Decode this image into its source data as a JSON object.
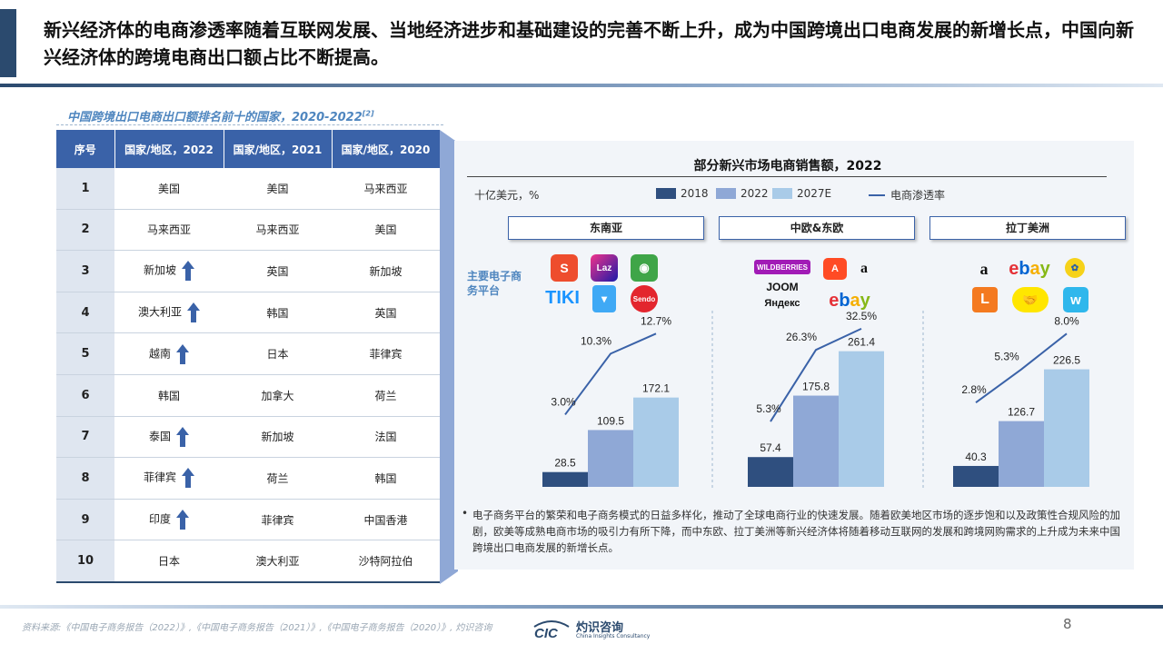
{
  "headline": "新兴经济体的电商渗透率随着互联网发展、当地经济进步和基础建设的完善不断上升，成为中国跨境出口电商发展的新增长点，中国向新兴经济体的跨境电商出口额占比不断提高。",
  "table": {
    "title": "中国跨境出口电商出口额排名前十的国家，2020-2022",
    "footnote": "[2]",
    "headers": [
      "序号",
      "国家/地区，2022",
      "国家/地区，2021",
      "国家/地区，2020"
    ],
    "rows": [
      {
        "rank": "1",
        "y2022": "美国",
        "y2021": "美国",
        "y2020": "马来西亚",
        "up": false
      },
      {
        "rank": "2",
        "y2022": "马来西亚",
        "y2021": "马来西亚",
        "y2020": "美国",
        "up": false
      },
      {
        "rank": "3",
        "y2022": "新加坡",
        "y2021": "英国",
        "y2020": "新加坡",
        "up": true
      },
      {
        "rank": "4",
        "y2022": "澳大利亚",
        "y2021": "韩国",
        "y2020": "英国",
        "up": true
      },
      {
        "rank": "5",
        "y2022": "越南",
        "y2021": "日本",
        "y2020": "菲律宾",
        "up": true
      },
      {
        "rank": "6",
        "y2022": "韩国",
        "y2021": "加拿大",
        "y2020": "荷兰",
        "up": false
      },
      {
        "rank": "7",
        "y2022": "泰国",
        "y2021": "新加坡",
        "y2020": "法国",
        "up": true
      },
      {
        "rank": "8",
        "y2022": "菲律宾",
        "y2021": "荷兰",
        "y2020": "韩国",
        "up": true
      },
      {
        "rank": "9",
        "y2022": "印度",
        "y2021": "菲律宾",
        "y2020": "中国香港",
        "up": true
      },
      {
        "rank": "10",
        "y2022": "日本",
        "y2021": "澳大利亚",
        "y2020": "沙特阿拉伯",
        "up": false
      }
    ],
    "arrow_icon": "up-arrow-icon"
  },
  "chart_data": {
    "type": "bar",
    "title": "部分新兴市场电商销售额，2022",
    "unit_label": "十亿美元，%",
    "legend": [
      "2018",
      "2022",
      "2027E",
      "电商渗透率"
    ],
    "colors": {
      "2018": "#2f4f7f",
      "2022": "#8fa8d6",
      "2027E": "#a9cbe8",
      "line": "#3a62a8"
    },
    "series_names": [
      "2018",
      "2022",
      "2027E"
    ],
    "line_series_name": "电商渗透率",
    "groups": [
      {
        "region": "东南亚",
        "values": [
          28.5,
          109.5,
          172.1
        ],
        "labels": [
          "28.5",
          "109.5",
          "172.1"
        ],
        "penetration": [
          3.0,
          10.3,
          12.7
        ],
        "penetration_labels": [
          "3.0%",
          "10.3%",
          "12.7%"
        ]
      },
      {
        "region": "中欧&东欧",
        "values": [
          57.4,
          175.8,
          261.4
        ],
        "labels": [
          "57.4",
          "175.8",
          "261.4"
        ],
        "penetration": [
          5.3,
          26.3,
          32.5
        ],
        "penetration_labels": [
          "5.3%",
          "26.3%",
          "32.5%"
        ]
      },
      {
        "region": "拉丁美洲",
        "values": [
          40.3,
          126.7,
          226.5
        ],
        "labels": [
          "40.3",
          "126.7",
          "226.5"
        ],
        "penetration": [
          2.8,
          5.3,
          8.0
        ],
        "penetration_labels": [
          "2.8%",
          "5.3%",
          "8.0%"
        ]
      }
    ],
    "grid": false,
    "legend_position": "top"
  },
  "platforms": {
    "label": "主要电子商务平台",
    "sea": [
      "Shopee",
      "Laz",
      "Tokopedia",
      "TIKI",
      "Blibli",
      "Sendo"
    ],
    "cee": [
      "WILDBERRIES",
      "AliExpress",
      "amazon",
      "JOOM",
      "Яндекс",
      "ebay"
    ],
    "latam": [
      "amazon",
      "ebay",
      "Americanas",
      "L",
      "Mercado Libre",
      "Wish"
    ]
  },
  "note": "电子商务平台的繁荣和电子商务模式的日益多样化，推动了全球电商行业的快速发展。随着欧美地区市场的逐步饱和以及政策性合规风险的加剧，欧美等成熟电商市场的吸引力有所下降，而中东欧、拉丁美洲等新兴经济体将随着移动互联网的发展和跨境网购需求的上升成为未来中国跨境出口电商发展的新增长点。",
  "footer": {
    "source": "资料来源:《中国电子商务报告（2022）》,《中国电子商务报告（2021）》,《中国电子商务报告（2020）》, 灼识咨询",
    "brand_abbr": "CIC",
    "brand_name": "灼识咨询",
    "brand_english": "China Insights Consultancy",
    "page": "8"
  }
}
